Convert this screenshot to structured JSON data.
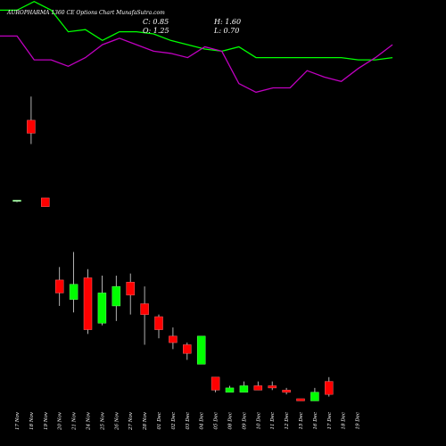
{
  "header": {
    "title": "AUROPHARMA 1360  CE Options Chart MunafaSutra.com",
    "close": "C: 0.85",
    "open": "O: 1.25",
    "high": "H: 1.60",
    "low": "L: 0.70"
  },
  "colors": {
    "background": "#000000",
    "up": "#00ff00",
    "down": "#ff0000",
    "line_green": "#00ff00",
    "line_magenta": "#c000c0",
    "text": "#ffffff"
  },
  "chart_data": {
    "type": "candlestick",
    "categories": [
      "17 Nov",
      "18 Nov",
      "19 Nov",
      "20 Nov",
      "21 Nov",
      "24 Nov",
      "25 Nov",
      "26 Nov",
      "27 Nov",
      "28 Nov",
      "01 Dec",
      "02 Dec",
      "03 Dec",
      "04 Dec",
      "05 Dec",
      "08 Dec",
      "09 Dec",
      "10 Dec",
      "11 Dec",
      "12 Dec",
      "15 Dec",
      "16 Dec",
      "17 Dec",
      "18 Dec",
      "19 Dec"
    ],
    "candles": [
      {
        "open": 12.2,
        "high": 12.2,
        "low": 12.1,
        "close": 12.2
      },
      {
        "open": 15.9,
        "high": 17.0,
        "low": 14.8,
        "close": 15.3
      },
      {
        "open": 12.3,
        "high": 12.3,
        "low": 11.9,
        "close": 11.9
      },
      {
        "open": 8.5,
        "high": 9.1,
        "low": 7.3,
        "close": 7.9
      },
      {
        "open": 7.6,
        "high": 9.8,
        "low": 7.0,
        "close": 8.3
      },
      {
        "open": 8.6,
        "high": 9.0,
        "low": 6.0,
        "close": 6.2
      },
      {
        "open": 6.5,
        "high": 8.7,
        "low": 6.4,
        "close": 7.9
      },
      {
        "open": 7.3,
        "high": 8.7,
        "low": 6.6,
        "close": 8.2
      },
      {
        "open": 8.4,
        "high": 8.8,
        "low": 6.9,
        "close": 7.8
      },
      {
        "open": 7.4,
        "high": 8.2,
        "low": 5.5,
        "close": 6.9
      },
      {
        "open": 6.8,
        "high": 6.9,
        "low": 5.8,
        "close": 6.2
      },
      {
        "open": 5.9,
        "high": 6.3,
        "low": 5.3,
        "close": 5.6
      },
      {
        "open": 5.5,
        "high": 5.6,
        "low": 4.8,
        "close": 5.1
      },
      {
        "open": 4.6,
        "high": 5.9,
        "low": 4.6,
        "close": 5.9
      },
      {
        "open": 4.0,
        "high": 4.0,
        "low": 3.3,
        "close": 3.4
      },
      {
        "open": 3.3,
        "high": 3.6,
        "low": 3.3,
        "close": 3.5
      },
      {
        "open": 3.3,
        "high": 3.8,
        "low": 3.3,
        "close": 3.6
      },
      {
        "open": 3.6,
        "high": 3.8,
        "low": 3.4,
        "close": 3.4
      },
      {
        "open": 3.6,
        "high": 3.8,
        "low": 3.4,
        "close": 3.5
      },
      {
        "open": 3.4,
        "high": 3.5,
        "low": 3.2,
        "close": 3.3
      },
      {
        "open": 3.0,
        "high": 3.0,
        "low": 2.9,
        "close": 2.9
      },
      {
        "open": 2.9,
        "high": 3.5,
        "low": 2.9,
        "close": 3.3
      },
      {
        "open": 3.8,
        "high": 4.0,
        "low": 3.1,
        "close": 3.2
      }
    ],
    "candle_slots": [
      0,
      1,
      2,
      3,
      4,
      5,
      6,
      7,
      8,
      9,
      10,
      11,
      12,
      13,
      14,
      15,
      16,
      17,
      18,
      19,
      20,
      21,
      22
    ],
    "line_green": [
      21.0,
      21.0,
      21.4,
      21.0,
      20.0,
      20.1,
      19.6,
      20.0,
      20.0,
      19.9,
      19.6,
      19.4,
      19.2,
      19.1,
      19.3,
      18.8,
      18.8,
      18.8,
      18.8,
      18.8,
      18.8,
      18.7,
      18.7,
      18.8
    ],
    "line_magenta": [
      19.8,
      19.8,
      18.7,
      18.7,
      18.4,
      18.8,
      19.4,
      19.7,
      19.4,
      19.1,
      19.0,
      18.8,
      19.3,
      19.1,
      17.6,
      17.2,
      17.4,
      17.4,
      18.2,
      17.9,
      17.7,
      18.3,
      18.8,
      19.4
    ],
    "xlabel": "",
    "ylabel": ""
  }
}
